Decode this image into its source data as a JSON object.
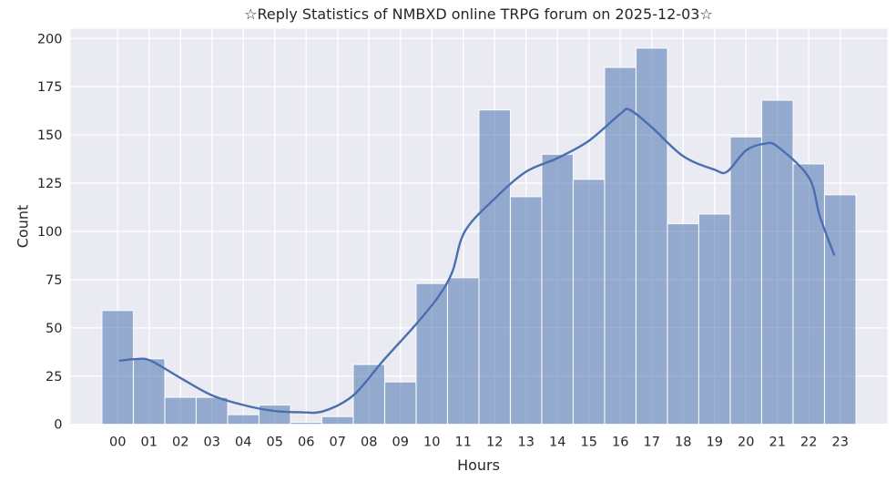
{
  "chart_data": {
    "type": "bar",
    "subtype": "histogram-with-kde",
    "title": "☆Reply Statistics of NMBXD online TRPG forum on 2025-12-03☆",
    "xlabel": "Hours",
    "ylabel": "Count",
    "categories": [
      "00",
      "01",
      "02",
      "03",
      "04",
      "05",
      "06",
      "07",
      "08",
      "09",
      "10",
      "11",
      "12",
      "13",
      "14",
      "15",
      "16",
      "17",
      "18",
      "19",
      "20",
      "21",
      "22",
      "23"
    ],
    "values": [
      59,
      34,
      14,
      14,
      5,
      10,
      1,
      4,
      31,
      22,
      73,
      76,
      163,
      118,
      140,
      127,
      185,
      195,
      104,
      109,
      149,
      168,
      135,
      119
    ],
    "yticks": [
      0,
      25,
      50,
      75,
      100,
      125,
      150,
      175,
      200
    ],
    "ylim": [
      0,
      205
    ],
    "xlim_bins": [
      -1.5,
      24.5
    ],
    "grid": "on",
    "legend": "none",
    "kde_points": [
      [
        0.07,
        33
      ],
      [
        0.6,
        33.8
      ],
      [
        1.05,
        33
      ],
      [
        2,
        24
      ],
      [
        3,
        15
      ],
      [
        4,
        10
      ],
      [
        4.95,
        7
      ],
      [
        5.8,
        6.3
      ],
      [
        6.55,
        6.8
      ],
      [
        7.5,
        15
      ],
      [
        8.45,
        33
      ],
      [
        9.45,
        51
      ],
      [
        10.2,
        66
      ],
      [
        10.65,
        79
      ],
      [
        11.05,
        100
      ],
      [
        12,
        117
      ],
      [
        13,
        131
      ],
      [
        14,
        138
      ],
      [
        15,
        147
      ],
      [
        16,
        161
      ],
      [
        16.3,
        163
      ],
      [
        17,
        154
      ],
      [
        18,
        139
      ],
      [
        19,
        132
      ],
      [
        19.4,
        131
      ],
      [
        20,
        142
      ],
      [
        20.6,
        145.5
      ],
      [
        21,
        144
      ],
      [
        22,
        128
      ],
      [
        22.35,
        108
      ],
      [
        22.8,
        88
      ]
    ],
    "colors": {
      "plot_bg": "#eaeaf2",
      "grid_line": "#ffffff",
      "bar_fill": "rgba(76,114,176,0.55)",
      "bar_edge": "rgba(255,255,255,0.88)",
      "kde_line": "#4a6fae",
      "text": "#262626"
    }
  }
}
